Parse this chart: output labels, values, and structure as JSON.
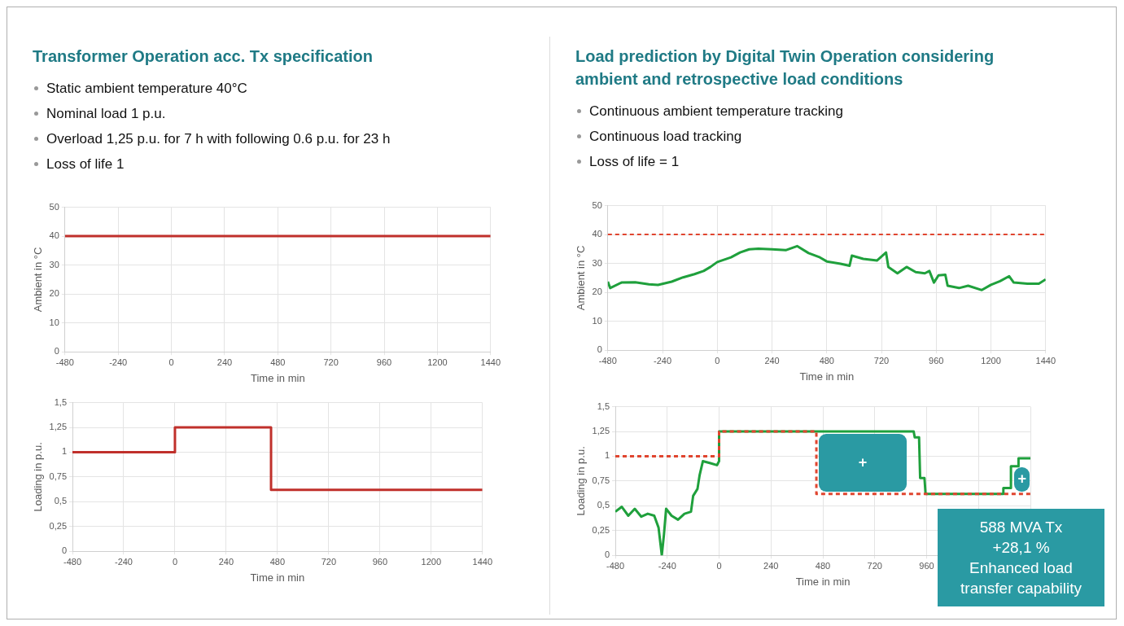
{
  "chart_data": [
    {
      "type": "line",
      "title": "Transformer Operation acc. Tx specification",
      "annotations": [
        "Static ambient temperature 40°C",
        "Nominal load 1 p.u.",
        "Overload 1,25 p.u. for 7 h with following 0.6 p.u. for 23 h",
        "Loss of life 1"
      ],
      "xlabel": "Time in min",
      "ylabel": "Ambient in °C",
      "xlim": [
        -480,
        1440
      ],
      "xticks": [
        -480,
        -240,
        0,
        240,
        480,
        720,
        960,
        1200,
        1440
      ],
      "ylim": [
        0,
        50
      ],
      "yticks": [
        0,
        10,
        20,
        30,
        40,
        50
      ],
      "grid": true,
      "legend": false,
      "series": [
        {
          "color": "#c0302b",
          "x": [
            -480,
            1440
          ],
          "values": [
            40,
            40
          ]
        }
      ]
    },
    {
      "type": "line",
      "xlabel": "Time in min",
      "ylabel": "Loading in p.u.",
      "xlim": [
        -480,
        1440
      ],
      "xticks": [
        -480,
        -240,
        0,
        240,
        480,
        720,
        960,
        1200,
        1440
      ],
      "ylim": [
        0,
        1.5
      ],
      "yticks": [
        0,
        {
          "value": 0.25,
          "label": "0,25"
        },
        {
          "value": 0.5,
          "label": "0,5"
        },
        {
          "value": 0.75,
          "label": "0,75"
        },
        1,
        {
          "value": 1.25,
          "label": "1,25"
        },
        {
          "value": 1.5,
          "label": "1,5"
        }
      ],
      "grid": true,
      "legend": false,
      "series": [
        {
          "color": "#c0302b",
          "x": [
            -480,
            0,
            0,
            450,
            450,
            1440
          ],
          "values": [
            1,
            1,
            1.25,
            1.25,
            0.62,
            0.62
          ]
        }
      ]
    },
    {
      "type": "line",
      "title": "Load prediction by Digital Twin Operation considering ambient and retrospective load conditions",
      "annotations": [
        "Continuous ambient temperature tracking",
        "Continuous load tracking",
        "Loss of life = 1"
      ],
      "xlabel": "Time in min",
      "ylabel": "Ambient in °C",
      "xlim": [
        -480,
        1440
      ],
      "xticks": [
        -480,
        -240,
        0,
        240,
        480,
        720,
        960,
        1200,
        1440
      ],
      "ylim": [
        0,
        50
      ],
      "yticks": [
        0,
        10,
        20,
        30,
        40,
        50
      ],
      "grid": true,
      "legend": false,
      "ref_lines": [
        {
          "axis": "y",
          "value": 40,
          "color": "#e0452f",
          "line_style": "dashed"
        }
      ],
      "series": [
        {
          "color": "#1fa03c",
          "x": [
            -480,
            -470,
            -420,
            -360,
            -300,
            -260,
            -200,
            -150,
            -100,
            -60,
            -30,
            0,
            60,
            100,
            140,
            180,
            240,
            300,
            350,
            400,
            450,
            480,
            540,
            580,
            590,
            640,
            700,
            740,
            750,
            790,
            830,
            870,
            910,
            930,
            950,
            970,
            1000,
            1010,
            1060,
            1100,
            1160,
            1200,
            1240,
            1280,
            1300,
            1360,
            1410,
            1440
          ],
          "values": [
            23.7,
            21.5,
            23.4,
            23.5,
            22.8,
            22.6,
            23.7,
            25.2,
            26.3,
            27.4,
            28.8,
            30.5,
            32.1,
            33.8,
            34.9,
            35.1,
            34.9,
            34.6,
            36,
            33.6,
            32.1,
            30.7,
            29.9,
            29.2,
            32.7,
            31.6,
            31,
            33.8,
            28.8,
            26.6,
            28.8,
            27,
            26.6,
            27.4,
            23.4,
            25.9,
            26.1,
            22.3,
            21.5,
            22.3,
            20.8,
            22.6,
            23.9,
            25.6,
            23.4,
            23,
            23,
            24.5
          ]
        }
      ]
    },
    {
      "type": "line",
      "xlabel": "Time in min",
      "ylabel": "Loading in p.u.",
      "xlim": [
        -480,
        1440
      ],
      "ylim": [
        0,
        1.5
      ],
      "yticks": [
        0,
        {
          "value": 0.25,
          "label": "0,25"
        },
        {
          "value": 0.5,
          "label": "0,5"
        },
        {
          "value": 0.75,
          "label": "0,75"
        },
        1,
        {
          "value": 1.25,
          "label": "1,25"
        },
        {
          "value": 1.5,
          "label": "1,5"
        }
      ],
      "grid": true,
      "legend": false,
      "xticks": [
        -480,
        -240,
        0,
        240,
        480,
        720,
        960,
        {
          "value": 1200,
          "label": null
        },
        {
          "value": 1440,
          "label": null
        }
      ],
      "annotations": [
        "588 MVA Tx\n+28,1 %\nEnhanced load\ntransfer capability",
        "+",
        "+"
      ],
      "series": [
        {
          "color": "#e0452f",
          "line_style": "dashed",
          "x": [
            -480,
            0,
            0,
            450,
            450,
            1440
          ],
          "values": [
            1,
            1,
            1.25,
            1.25,
            0.62,
            0.62
          ]
        },
        {
          "color": "#1fa03c",
          "x": [
            -480,
            -450,
            -420,
            -390,
            -360,
            -330,
            -300,
            -280,
            -265,
            -255,
            -245,
            -220,
            -190,
            -160,
            -130,
            -120,
            -100,
            -90,
            -75,
            -40,
            -10,
            0,
            0,
            900,
            905,
            925,
            930,
            950,
            955,
            1315,
            1315,
            1350,
            1350,
            1385,
            1385,
            1440
          ],
          "values": [
            0.44,
            0.49,
            0.4,
            0.47,
            0.39,
            0.42,
            0.4,
            0.28,
            0,
            0.21,
            0.47,
            0.4,
            0.36,
            0.42,
            0.44,
            0.6,
            0.67,
            0.81,
            0.95,
            0.93,
            0.91,
            0.95,
            1.25,
            1.25,
            1.19,
            1.19,
            0.78,
            0.78,
            0.62,
            0.62,
            0.68,
            0.68,
            0.9,
            0.9,
            0.98,
            0.98
          ]
        }
      ]
    }
  ]
}
